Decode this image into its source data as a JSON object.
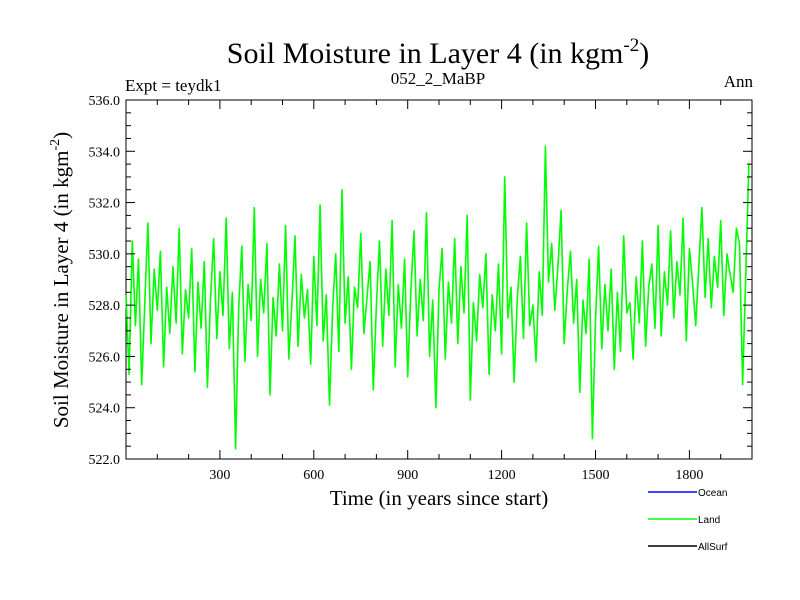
{
  "chart_data": {
    "type": "line",
    "title": "Soil Moisture in Layer 4 (in kgm",
    "title_superscript": "-2",
    "title_close": ")",
    "subtitle_left": "Expt = teydk1",
    "subtitle_center": "052_2_MaBP",
    "subtitle_right": "Ann",
    "xlabel": "Time (in years since start)",
    "ylabel": "Soil Moisture in Layer 4 (in kgm",
    "ylabel_superscript": "-2",
    "ylabel_close": ")",
    "xlim": [
      0,
      2000
    ],
    "ylim": [
      522.0,
      536.0
    ],
    "xticks": [
      300,
      600,
      900,
      1200,
      1500,
      1800
    ],
    "xtick_labels": [
      "300",
      "600",
      "900",
      "1200",
      "1500",
      "1800"
    ],
    "yticks": [
      522.0,
      524.0,
      526.0,
      528.0,
      530.0,
      532.0,
      534.0,
      536.0
    ],
    "ytick_labels": [
      "522.0",
      "524.0",
      "526.0",
      "528.0",
      "530.0",
      "532.0",
      "534.0",
      "536.0"
    ],
    "legend_position": "bottom-right",
    "series": [
      {
        "name": "Ocean",
        "color": "#0000ff",
        "values": []
      },
      {
        "name": "Land",
        "color": "#00ff00",
        "x_start": 0,
        "x_step": 10,
        "values": [
          528.4,
          525.3,
          530.5,
          527.2,
          529.8,
          524.9,
          528.1,
          531.2,
          526.5,
          529.4,
          527.8,
          530.1,
          525.6,
          528.7,
          526.9,
          529.5,
          527.3,
          531.0,
          526.1,
          528.6,
          527.5,
          530.2,
          525.4,
          528.9,
          527.1,
          529.7,
          524.8,
          528.2,
          530.6,
          526.7,
          529.3,
          527.6,
          531.4,
          526.3,
          528.5,
          522.4,
          527.9,
          530.3,
          525.8,
          528.8,
          527.4,
          531.8,
          526.0,
          529.0,
          527.7,
          530.4,
          524.5,
          528.3,
          526.8,
          529.6,
          527.0,
          531.1,
          525.9,
          528.1,
          530.7,
          526.4,
          529.2,
          527.5,
          528.6,
          525.7,
          529.9,
          527.2,
          531.9,
          526.6,
          528.4,
          524.1,
          527.8,
          530.0,
          526.2,
          532.5,
          527.3,
          529.1,
          525.5,
          528.7,
          527.9,
          530.8,
          526.9,
          528.3,
          529.7,
          524.7,
          528.0,
          530.5,
          526.4,
          529.4,
          527.6,
          531.3,
          525.6,
          528.8,
          527.1,
          529.8,
          525.2,
          528.5,
          530.9,
          526.8,
          529.0,
          527.4,
          531.6,
          526.0,
          528.2,
          524.0,
          528.6,
          530.2,
          525.9,
          528.9,
          527.3,
          530.6,
          526.5,
          529.5,
          527.7,
          531.5,
          524.3,
          528.1,
          526.6,
          529.2,
          527.9,
          530.0,
          525.3,
          528.4,
          527.0,
          529.6,
          526.1,
          533.0,
          527.5,
          528.7,
          525.0,
          528.3,
          529.9,
          526.7,
          531.2,
          527.2,
          528.0,
          525.8,
          529.3,
          527.6,
          534.2,
          528.9,
          530.4,
          527.8,
          529.5,
          531.7,
          526.5,
          528.6,
          530.1,
          527.3,
          529.0,
          524.6,
          528.2,
          526.9,
          529.8,
          522.8,
          527.4,
          530.3,
          526.3,
          528.8,
          527.0,
          529.4,
          525.5,
          528.5,
          526.2,
          530.7,
          527.7,
          528.1,
          525.9,
          529.1,
          527.3,
          530.5,
          526.4,
          528.7,
          529.6,
          527.1,
          531.1,
          526.8,
          529.3,
          528.0,
          530.9,
          527.5,
          529.7,
          528.4,
          531.4,
          526.6,
          530.2,
          528.9,
          527.2,
          529.5,
          531.8,
          528.3,
          530.6,
          527.9,
          529.9,
          528.7,
          531.3,
          527.6,
          530.0,
          529.2,
          528.5,
          531.0,
          530.4,
          524.9,
          529.1,
          533.5
        ]
      },
      {
        "name": "AllSurf",
        "color": "#000000",
        "values": []
      }
    ]
  }
}
